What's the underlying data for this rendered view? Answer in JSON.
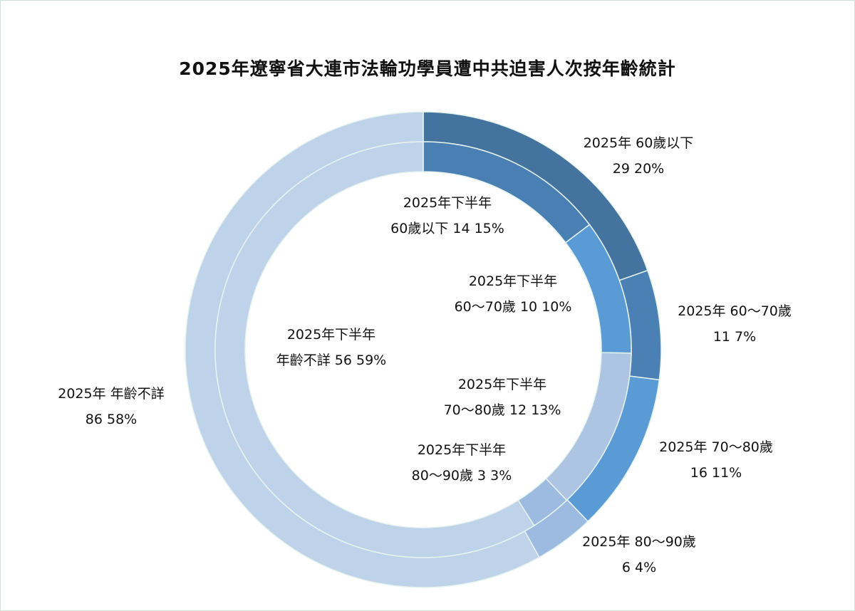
{
  "chart_data": {
    "type": "pie",
    "subtype": "nested-donut",
    "title": "2025年遼寧省大連市法輪功學員遭中共迫害人次按年齡統計",
    "start_angle": "12 o'clock, clockwise",
    "categories": [
      "60歲以下",
      "60～70歲",
      "70～80歲",
      "80～90歲",
      "年齡不詳"
    ],
    "series": [
      {
        "name": "2025年",
        "ring": "outer",
        "values": [
          29,
          11,
          16,
          6,
          86
        ],
        "percents": [
          "20%",
          "7%",
          "11%",
          "4%",
          "58%"
        ],
        "colors": [
          "#44739f",
          "#4a80b4",
          "#5b9bd5",
          "#9dbbe0",
          "#bed2ea"
        ],
        "labels": [
          {
            "line1": "2025年 60歲以下",
            "line2": "29 20%"
          },
          {
            "line1": "2025年 60～70歲",
            "line2": "11 7%"
          },
          {
            "line1": "2025年 70～80歲",
            "line2": "16 11%"
          },
          {
            "line1": "2025年 80～90歲",
            "line2": "6 4%"
          },
          {
            "line1": "2025年 年齡不詳",
            "line2": "86 58%"
          }
        ]
      },
      {
        "name": "2025年下半年",
        "ring": "inner",
        "values": [
          14,
          10,
          12,
          3,
          56
        ],
        "percents": [
          "15%",
          "10%",
          "13%",
          "3%",
          "59%"
        ],
        "colors": [
          "#4a7fb3",
          "#5b9bd5",
          "#adc5e3",
          "#9dbbe0",
          "#bed2ea"
        ],
        "labels": [
          {
            "line1": "2025年下半年",
            "line2": "60歲以下 14 15%"
          },
          {
            "line1": "2025年下半年",
            "line2": "60～70歲 10 10%"
          },
          {
            "line1": "2025年下半年",
            "line2": "70～80歲 12 13%"
          },
          {
            "line1": "2025年下半年",
            "line2": "80～90歲 3 3%"
          },
          {
            "line1": "2025年下半年",
            "line2": "年齡不詳 56 59%"
          }
        ]
      }
    ]
  }
}
